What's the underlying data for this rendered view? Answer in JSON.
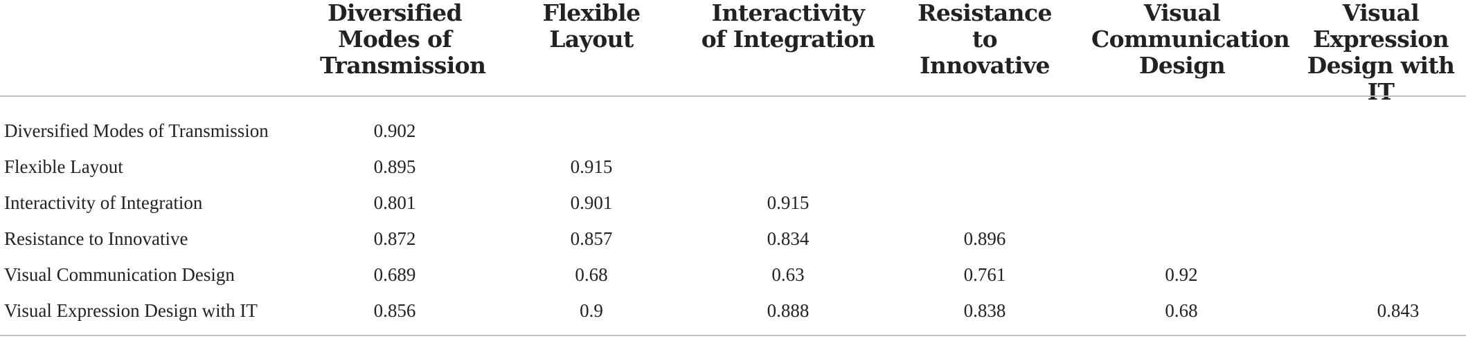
{
  "columns": [
    "Diversified Modes of Transmission",
    "Flexible Layout",
    "Interactivity of Integration",
    "Resistance to Innovative",
    "Visual Communication Design",
    "Visual Expression Design with IT"
  ],
  "rows": [
    {
      "label": "Diversified Modes of Transmission",
      "values": [
        "0.902"
      ]
    },
    {
      "label": "Flexible Layout",
      "values": [
        "0.895",
        "0.915"
      ]
    },
    {
      "label": "Interactivity of Integration",
      "values": [
        "0.801",
        "0.901",
        "0.915"
      ]
    },
    {
      "label": "Resistance to Innovative",
      "values": [
        "0.872",
        "0.857",
        "0.834",
        "0.896"
      ]
    },
    {
      "label": "Visual Communication Design",
      "values": [
        "0.689",
        "0.68",
        "0.63",
        "0.761",
        "0.92"
      ]
    },
    {
      "label": "Visual Expression Design with IT",
      "values": [
        "0.856",
        "0.9",
        "0.888",
        "0.838",
        "0.68",
        "0.843"
      ]
    }
  ]
}
